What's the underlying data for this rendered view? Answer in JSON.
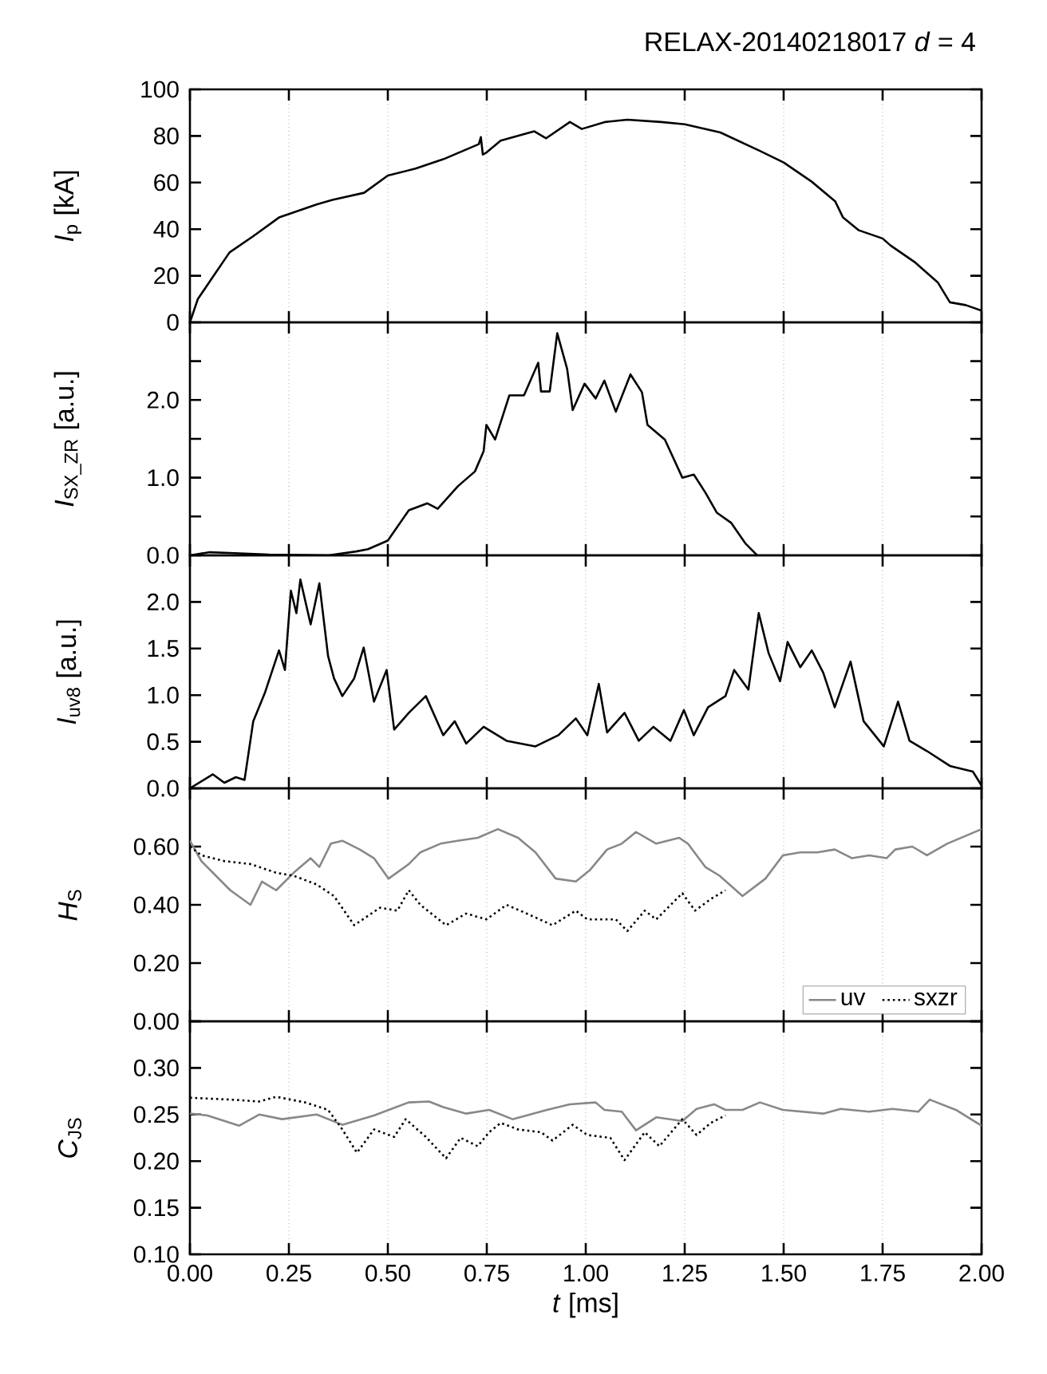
{
  "chart_data": [
    {
      "type": "line",
      "title": "RELAX-20140218017 *d* = 4",
      "ylabel": "*I*$_{p}$ [kA]",
      "xlim": [
        0,
        2
      ],
      "ylim": [
        0,
        100
      ],
      "grid": "x",
      "tick_labels": "y",
      "xticks": [
        {
          "value": 0,
          "label": null
        },
        {
          "value": 0.25,
          "label": null
        },
        {
          "value": 0.5,
          "label": null
        },
        {
          "value": 0.75,
          "label": null
        },
        {
          "value": 1,
          "label": null
        },
        {
          "value": 1.25,
          "label": null
        },
        {
          "value": 1.5,
          "label": null
        },
        {
          "value": 1.75,
          "label": null
        },
        {
          "value": 2,
          "label": null
        }
      ],
      "yticks": [
        0,
        20,
        40,
        60,
        80,
        100
      ],
      "series": [
        {
          "color": "#000000",
          "line_style": "solid",
          "x": [
            0,
            0.02,
            0.06,
            0.1,
            0.16,
            0.225,
            0.25,
            0.32,
            0.36,
            0.44,
            0.5,
            0.57,
            0.64,
            0.73,
            0.735,
            0.74,
            0.75,
            0.785,
            0.87,
            0.9,
            0.96,
            0.99,
            1.05,
            1.105,
            1.19,
            1.25,
            1.34,
            1.44,
            1.5,
            1.57,
            1.63,
            1.65,
            1.69,
            1.75,
            1.77,
            1.83,
            1.89,
            1.92,
            1.96,
            2.0
          ],
          "values": [
            0,
            10,
            20,
            30,
            37,
            45,
            46.5,
            50.6,
            52.6,
            55.6,
            63,
            66,
            70,
            76.5,
            79.5,
            72,
            73,
            78,
            82,
            79,
            86,
            83,
            86,
            87,
            86,
            85,
            81.5,
            73.6,
            68.6,
            60.5,
            52,
            45,
            39.5,
            36,
            33,
            26,
            17,
            8.6,
            7.4,
            5
          ]
        }
      ]
    },
    {
      "type": "line",
      "ylabel": "*I*$_{SX_ZR}$ [a.u.]",
      "xlim": [
        0,
        2
      ],
      "ylim": [
        0,
        3
      ],
      "grid": "x",
      "tick_labels": "y",
      "xticks": [
        {
          "value": 0,
          "label": null
        },
        {
          "value": 0.25,
          "label": null
        },
        {
          "value": 0.5,
          "label": null
        },
        {
          "value": 0.75,
          "label": null
        },
        {
          "value": 1,
          "label": null
        },
        {
          "value": 1.25,
          "label": null
        },
        {
          "value": 1.5,
          "label": null
        },
        {
          "value": 1.75,
          "label": null
        },
        {
          "value": 2,
          "label": null
        }
      ],
      "yticks": [
        {
          "value": 0,
          "label": "0.0"
        },
        {
          "value": 0.5,
          "label": null
        },
        {
          "value": 1,
          "label": "1.0"
        },
        {
          "value": 1.5,
          "label": null
        },
        {
          "value": 2,
          "label": "2.0"
        },
        {
          "value": 2.5,
          "label": null
        }
      ],
      "series": [
        {
          "color": "#000000",
          "line_style": "solid",
          "x": [
            0,
            0.05,
            0.1,
            0.2,
            0.35,
            0.42,
            0.45,
            0.5,
            0.553,
            0.6,
            0.626,
            0.677,
            0.72,
            0.742,
            0.749,
            0.771,
            0.807,
            0.844,
            0.88,
            0.887,
            0.909,
            0.928,
            0.953,
            0.967,
            0.997,
            1.025,
            1.047,
            1.076,
            1.113,
            1.142,
            1.156,
            1.2,
            1.244,
            1.273,
            1.302,
            1.331,
            1.367,
            1.404,
            1.433
          ],
          "values": [
            0,
            0.04,
            0.03,
            0.01,
            0.0,
            0.05,
            0.08,
            0.19,
            0.58,
            0.67,
            0.6,
            0.89,
            1.08,
            1.34,
            1.68,
            1.49,
            2.06,
            2.06,
            2.48,
            2.11,
            2.11,
            2.86,
            2.4,
            1.87,
            2.21,
            2.02,
            2.25,
            1.85,
            2.33,
            2.1,
            1.68,
            1.49,
            1.0,
            1.04,
            0.81,
            0.55,
            0.42,
            0.15,
            0.0
          ]
        }
      ]
    },
    {
      "type": "line",
      "ylabel": "*I*$_{uv8}$ [a.u.]",
      "xlim": [
        0,
        2
      ],
      "ylim": [
        0,
        2.5
      ],
      "grid": "x",
      "tick_labels": "y",
      "xticks": [
        {
          "value": 0,
          "label": null
        },
        {
          "value": 0.25,
          "label": null
        },
        {
          "value": 0.5,
          "label": null
        },
        {
          "value": 0.75,
          "label": null
        },
        {
          "value": 1,
          "label": null
        },
        {
          "value": 1.25,
          "label": null
        },
        {
          "value": 1.5,
          "label": null
        },
        {
          "value": 1.75,
          "label": null
        },
        {
          "value": 2,
          "label": null
        }
      ],
      "yticks": [
        {
          "value": 0,
          "label": "0.0"
        },
        {
          "value": 0.5,
          "label": "0.5"
        },
        {
          "value": 1,
          "label": "1.0"
        },
        {
          "value": 1.5,
          "label": "1.5"
        },
        {
          "value": 2,
          "label": "2.0"
        }
      ],
      "series": [
        {
          "color": "#000000",
          "line_style": "solid",
          "x": [
            0,
            0.058,
            0.087,
            0.116,
            0.138,
            0.16,
            0.189,
            0.225,
            0.24,
            0.255,
            0.269,
            0.279,
            0.305,
            0.327,
            0.349,
            0.364,
            0.385,
            0.415,
            0.439,
            0.465,
            0.497,
            0.516,
            0.553,
            0.596,
            0.64,
            0.669,
            0.698,
            0.742,
            0.8,
            0.873,
            0.931,
            0.975,
            1.004,
            1.033,
            1.054,
            1.098,
            1.134,
            1.171,
            1.214,
            1.248,
            1.273,
            1.309,
            1.353,
            1.375,
            1.411,
            1.437,
            1.462,
            1.491,
            1.51,
            1.542,
            1.571,
            1.6,
            1.629,
            1.669,
            1.702,
            1.753,
            1.789,
            1.818,
            1.862,
            1.92,
            1.978,
            2.0
          ],
          "values": [
            0,
            0.15,
            0.06,
            0.12,
            0.09,
            0.72,
            1.02,
            1.48,
            1.27,
            2.12,
            1.88,
            2.24,
            1.76,
            2.2,
            1.42,
            1.18,
            0.99,
            1.18,
            1.51,
            0.93,
            1.27,
            0.63,
            0.81,
            0.99,
            0.57,
            0.72,
            0.48,
            0.66,
            0.51,
            0.45,
            0.57,
            0.75,
            0.57,
            1.12,
            0.6,
            0.81,
            0.51,
            0.66,
            0.51,
            0.84,
            0.57,
            0.87,
            0.99,
            1.27,
            1.06,
            1.88,
            1.45,
            1.15,
            1.57,
            1.3,
            1.48,
            1.24,
            0.87,
            1.36,
            0.72,
            0.45,
            0.93,
            0.51,
            0.4,
            0.24,
            0.18,
            0.03
          ]
        }
      ]
    },
    {
      "type": "line",
      "ylabel": "*H*$_{S}$",
      "xlim": [
        0,
        2
      ],
      "ylim": [
        0,
        0.8
      ],
      "grid": "x",
      "tick_labels": "y",
      "legend": "bottom right",
      "xticks": [
        {
          "value": 0,
          "label": null
        },
        {
          "value": 0.25,
          "label": null
        },
        {
          "value": 0.5,
          "label": null
        },
        {
          "value": 0.75,
          "label": null
        },
        {
          "value": 1,
          "label": null
        },
        {
          "value": 1.25,
          "label": null
        },
        {
          "value": 1.5,
          "label": null
        },
        {
          "value": 1.75,
          "label": null
        },
        {
          "value": 2,
          "label": null
        }
      ],
      "yticks": [
        {
          "value": 0,
          "label": "0.00"
        },
        {
          "value": 0.2,
          "label": "0.20"
        },
        {
          "value": 0.4,
          "label": "0.40"
        },
        {
          "value": 0.6,
          "label": "0.60"
        }
      ],
      "series": [
        {
          "name": "uv",
          "color": "#888888",
          "line_style": "solid",
          "x": [
            0,
            0.029,
            0.102,
            0.153,
            0.182,
            0.218,
            0.262,
            0.305,
            0.327,
            0.356,
            0.385,
            0.429,
            0.465,
            0.502,
            0.553,
            0.582,
            0.633,
            0.676,
            0.727,
            0.778,
            0.829,
            0.873,
            0.924,
            0.975,
            1.011,
            1.054,
            1.091,
            1.127,
            1.178,
            1.236,
            1.258,
            1.302,
            1.338,
            1.396,
            1.454,
            1.498,
            1.542,
            1.585,
            1.629,
            1.673,
            1.716,
            1.76,
            1.782,
            1.825,
            1.862,
            1.913,
            2.0
          ],
          "values": [
            0.62,
            0.55,
            0.45,
            0.4,
            0.48,
            0.45,
            0.51,
            0.56,
            0.53,
            0.61,
            0.62,
            0.59,
            0.56,
            0.49,
            0.54,
            0.58,
            0.61,
            0.62,
            0.63,
            0.66,
            0.63,
            0.58,
            0.49,
            0.48,
            0.52,
            0.59,
            0.61,
            0.65,
            0.61,
            0.63,
            0.61,
            0.53,
            0.5,
            0.43,
            0.49,
            0.57,
            0.58,
            0.58,
            0.59,
            0.56,
            0.57,
            0.56,
            0.59,
            0.6,
            0.57,
            0.61,
            0.66
          ]
        },
        {
          "name": "sxzr",
          "color": "#000000",
          "line_style": "dotted",
          "x": [
            0,
            0.029,
            0.087,
            0.153,
            0.218,
            0.262,
            0.32,
            0.364,
            0.415,
            0.48,
            0.524,
            0.553,
            0.582,
            0.647,
            0.698,
            0.749,
            0.8,
            0.851,
            0.916,
            0.975,
            1.004,
            1.076,
            1.105,
            1.149,
            1.178,
            1.244,
            1.276,
            1.316,
            1.353
          ],
          "values": [
            0.6,
            0.57,
            0.55,
            0.54,
            0.51,
            0.5,
            0.47,
            0.43,
            0.33,
            0.39,
            0.38,
            0.45,
            0.4,
            0.33,
            0.37,
            0.35,
            0.4,
            0.37,
            0.33,
            0.38,
            0.35,
            0.35,
            0.31,
            0.38,
            0.35,
            0.44,
            0.38,
            0.42,
            0.45
          ]
        }
      ]
    },
    {
      "type": "line",
      "ylabel": "*C*$_{JS}$",
      "xlabel": "*t* [ms]",
      "xlim": [
        0,
        2
      ],
      "ylim": [
        0.1,
        0.35
      ],
      "grid": "x",
      "xticks": [
        {
          "value": 0,
          "label": "0.00"
        },
        {
          "value": 0.25,
          "label": "0.25"
        },
        {
          "value": 0.5,
          "label": "0.50"
        },
        {
          "value": 0.75,
          "label": "0.75"
        },
        {
          "value": 1,
          "label": "1.00"
        },
        {
          "value": 1.25,
          "label": "1.25"
        },
        {
          "value": 1.5,
          "label": "1.50"
        },
        {
          "value": 1.75,
          "label": "1.75"
        },
        {
          "value": 2,
          "label": "2.00"
        }
      ],
      "yticks": [
        {
          "value": 0.1,
          "label": "0.10"
        },
        {
          "value": 0.15,
          "label": "0.15"
        },
        {
          "value": 0.2,
          "label": "0.20"
        },
        {
          "value": 0.25,
          "label": "0.25"
        },
        {
          "value": 0.3,
          "label": "0.30"
        },
        {
          "value": 0.35,
          "label": null
        }
      ],
      "series": [
        {
          "color": "#888888",
          "line_style": "solid",
          "x": [
            0,
            0.044,
            0.124,
            0.175,
            0.233,
            0.32,
            0.385,
            0.465,
            0.553,
            0.604,
            0.64,
            0.698,
            0.756,
            0.815,
            0.902,
            0.96,
            1.025,
            1.047,
            1.091,
            1.127,
            1.178,
            1.244,
            1.28,
            1.324,
            1.353,
            1.396,
            1.44,
            1.498,
            1.6,
            1.644,
            1.716,
            1.775,
            1.84,
            1.869,
            1.935,
            2.0
          ],
          "values": [
            0.251,
            0.249,
            0.238,
            0.25,
            0.245,
            0.25,
            0.239,
            0.249,
            0.263,
            0.264,
            0.258,
            0.251,
            0.255,
            0.245,
            0.255,
            0.261,
            0.263,
            0.255,
            0.253,
            0.233,
            0.247,
            0.243,
            0.256,
            0.261,
            0.255,
            0.255,
            0.263,
            0.255,
            0.251,
            0.256,
            0.253,
            0.256,
            0.253,
            0.266,
            0.255,
            0.238
          ]
        },
        {
          "color": "#000000",
          "line_style": "dotted",
          "x": [
            0,
            0.102,
            0.175,
            0.218,
            0.291,
            0.349,
            0.385,
            0.422,
            0.465,
            0.516,
            0.545,
            0.596,
            0.647,
            0.684,
            0.727,
            0.756,
            0.785,
            0.829,
            0.887,
            0.916,
            0.967,
            1.004,
            1.062,
            1.098,
            1.149,
            1.186,
            1.244,
            1.28,
            1.316,
            1.353
          ],
          "values": [
            0.268,
            0.266,
            0.264,
            0.269,
            0.263,
            0.255,
            0.234,
            0.209,
            0.234,
            0.226,
            0.245,
            0.226,
            0.203,
            0.225,
            0.216,
            0.231,
            0.241,
            0.234,
            0.231,
            0.222,
            0.239,
            0.228,
            0.225,
            0.201,
            0.231,
            0.216,
            0.245,
            0.228,
            0.241,
            0.249
          ]
        }
      ]
    }
  ]
}
